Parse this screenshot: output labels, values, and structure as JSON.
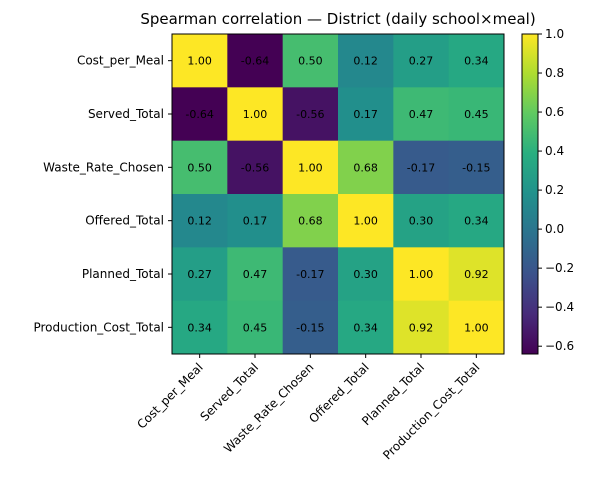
{
  "chart_data": {
    "type": "heatmap",
    "title": "Spearman correlation — District (daily school×meal)",
    "row_labels": [
      "Cost_per_Meal",
      "Served_Total",
      "Waste_Rate_Chosen",
      "Offered_Total",
      "Planned_Total",
      "Production_Cost_Total"
    ],
    "col_labels": [
      "Cost_per_Meal",
      "Served_Total",
      "Waste_Rate_Chosen",
      "Offered_Total",
      "Planned_Total",
      "Production_Cost_Total"
    ],
    "values": [
      [
        1.0,
        -0.64,
        0.5,
        0.12,
        0.27,
        0.34
      ],
      [
        -0.64,
        1.0,
        -0.56,
        0.17,
        0.47,
        0.45
      ],
      [
        0.5,
        -0.56,
        1.0,
        0.68,
        -0.17,
        -0.15
      ],
      [
        0.12,
        0.17,
        0.68,
        1.0,
        0.3,
        0.34
      ],
      [
        0.27,
        0.47,
        -0.17,
        0.3,
        1.0,
        0.92
      ],
      [
        0.34,
        0.45,
        -0.15,
        0.34,
        0.92,
        1.0
      ]
    ],
    "cell_labels": [
      [
        "1.00",
        "-0.64",
        "0.50",
        "0.12",
        "0.27",
        "0.34"
      ],
      [
        "-0.64",
        "1.00",
        "-0.56",
        "0.17",
        "0.47",
        "0.45"
      ],
      [
        "0.50",
        "-0.56",
        "1.00",
        "0.68",
        "-0.17",
        "-0.15"
      ],
      [
        "0.12",
        "0.17",
        "0.68",
        "1.00",
        "0.30",
        "0.34"
      ],
      [
        "0.27",
        "0.47",
        "-0.17",
        "0.30",
        "1.00",
        "0.92"
      ],
      [
        "0.34",
        "0.45",
        "-0.15",
        "0.34",
        "0.92",
        "1.00"
      ]
    ],
    "colormap": "viridis",
    "vmin": -0.64,
    "vmax": 1.0,
    "colorbar": {
      "ticks": [
        1.0,
        0.8,
        0.6,
        0.4,
        0.2,
        0.0,
        -0.2,
        -0.4,
        -0.6
      ],
      "tick_labels": [
        "1.0",
        "0.8",
        "0.6",
        "0.4",
        "0.2",
        "0.0",
        "−0.2",
        "−0.4",
        "−0.6"
      ],
      "placement": "right"
    },
    "grid": false
  }
}
